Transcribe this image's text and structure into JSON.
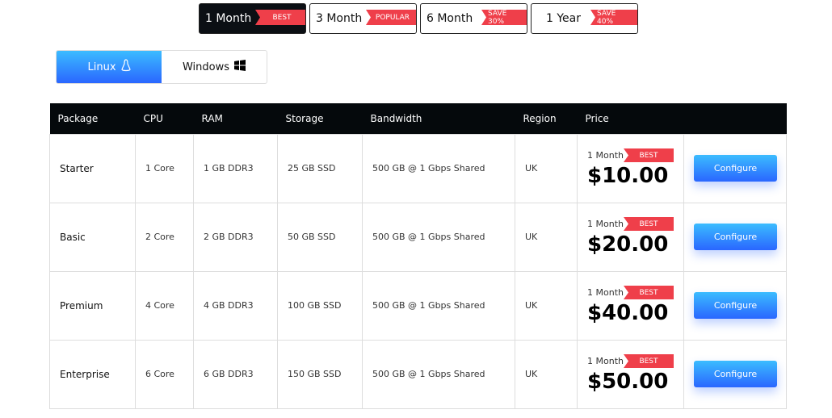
{
  "periods": [
    {
      "label": "1 Month",
      "badge": "BEST",
      "active": true
    },
    {
      "label": "3 Month",
      "badge": "POPULAR"
    },
    {
      "label": "6 Month",
      "badge": "SAVE 30%"
    },
    {
      "label": "1 Year",
      "badge": "SAVE 40%"
    }
  ],
  "os": [
    {
      "label": "Linux",
      "icon": "linux-icon",
      "active": true
    },
    {
      "label": "Windows",
      "icon": "windows-icon"
    }
  ],
  "table": {
    "headers": [
      "Package",
      "CPU",
      "RAM",
      "Storage",
      "Bandwidth",
      "Region",
      "Price"
    ],
    "rows": [
      {
        "package": "Starter",
        "cpu": "1 Core",
        "ram": "1 GB DDR3",
        "storage": "25 GB SSD",
        "bandwidth": "500 GB @ 1 Gbps Shared",
        "region": "UK",
        "period": "1 Month",
        "badge": "BEST",
        "price": "$10.00",
        "button": "Configure"
      },
      {
        "package": "Basic",
        "cpu": "2 Core",
        "ram": "2 GB DDR3",
        "storage": "50 GB SSD",
        "bandwidth": "500 GB @ 1 Gbps Shared",
        "region": "UK",
        "period": "1 Month",
        "badge": "BEST",
        "price": "$20.00",
        "button": "Configure"
      },
      {
        "package": "Premium",
        "cpu": "4 Core",
        "ram": "4 GB DDR3",
        "storage": "100 GB SSD",
        "bandwidth": "500 GB @ 1 Gbps Shared",
        "region": "UK",
        "period": "1 Month",
        "badge": "BEST",
        "price": "$40.00",
        "button": "Configure"
      },
      {
        "package": "Enterprise",
        "cpu": "6 Core",
        "ram": "6 GB DDR3",
        "storage": "150 GB SSD",
        "bandwidth": "500 GB @ 1 Gbps Shared",
        "region": "UK",
        "period": "1 Month",
        "badge": "BEST",
        "price": "$50.00",
        "button": "Configure"
      }
    ]
  },
  "colors": {
    "accent": "#2a7bff",
    "badge": "#ef3f4a",
    "header": "#05090c"
  }
}
